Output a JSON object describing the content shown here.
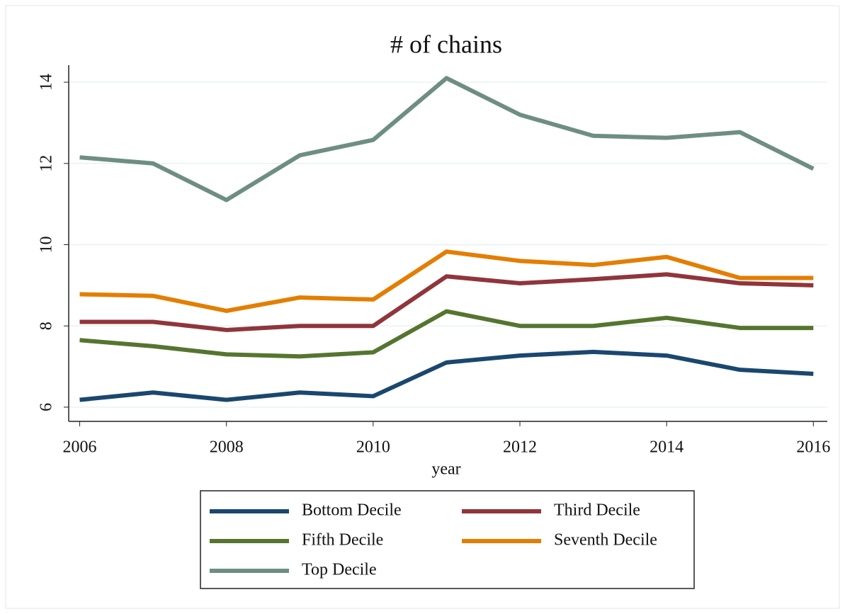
{
  "chart_data": {
    "type": "line",
    "title": "# of chains",
    "x_label": "year",
    "x": [
      2006,
      2007,
      2008,
      2009,
      2010,
      2011,
      2012,
      2013,
      2014,
      2015,
      2016
    ],
    "series": [
      {
        "name": "Bottom Decile",
        "color": "#1a476f",
        "values": [
          6.18,
          6.36,
          6.18,
          6.36,
          6.27,
          7.1,
          7.27,
          7.36,
          7.27,
          6.92,
          6.82
        ]
      },
      {
        "name": "Third Decile",
        "color": "#90353b",
        "values": [
          8.1,
          8.1,
          7.9,
          8.0,
          8.0,
          9.22,
          9.05,
          9.15,
          9.27,
          9.05,
          9.0
        ]
      },
      {
        "name": "Fifth Decile",
        "color": "#55752f",
        "values": [
          7.65,
          7.5,
          7.3,
          7.25,
          7.35,
          8.36,
          8.0,
          8.0,
          8.2,
          7.95,
          7.95
        ]
      },
      {
        "name": "Seventh Decile",
        "color": "#e37e00",
        "values": [
          8.78,
          8.74,
          8.37,
          8.7,
          8.65,
          9.83,
          9.6,
          9.5,
          9.7,
          9.18,
          9.18
        ]
      },
      {
        "name": "Top Decile",
        "color": "#6e8e84",
        "values": [
          12.15,
          12.0,
          11.1,
          12.2,
          12.58,
          14.1,
          13.2,
          12.68,
          12.63,
          12.77,
          11.87
        ]
      }
    ],
    "xlim": [
      2005.85,
      2016.19
    ],
    "xticks": [
      2006,
      2008,
      2010,
      2012,
      2014,
      2016
    ],
    "ylim": [
      5.65,
      14.42
    ],
    "yticks": [
      6,
      8,
      10,
      12,
      14
    ],
    "grid": true,
    "legend": "bottom"
  }
}
